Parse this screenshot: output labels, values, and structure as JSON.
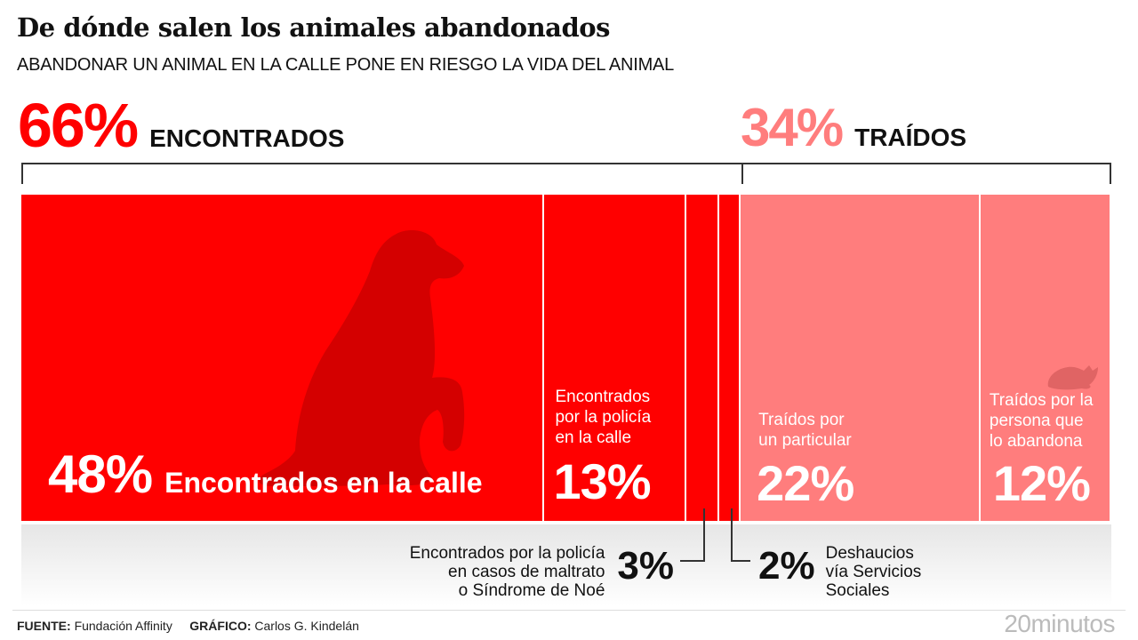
{
  "header": {
    "title": "De dónde salen los animales abandonados",
    "subtitle": "ABANDONAR UN ANIMAL EN LA CALLE PONE EN RIESGO LA VIDA DEL ANIMAL"
  },
  "colors": {
    "encontrados": "#ff0000",
    "traidos": "#ff7d7d",
    "silhouette_dark": "#d40000",
    "silhouette_light": "#e06464"
  },
  "groups": [
    {
      "pct": "66%",
      "label": "ENCONTRADOS",
      "value": 66
    },
    {
      "pct": "34%",
      "label": "TRAÍDOS",
      "value": 34
    }
  ],
  "segments": [
    {
      "pct": "48%",
      "label": "Encontrados en la calle"
    },
    {
      "pct": "13%",
      "label_lines": [
        "Encontrados",
        "por la policía",
        "en la calle"
      ]
    },
    {
      "pct": "3%",
      "label_lines": [
        "Encontrados por la policía",
        "en casos de maltrato",
        "o Síndrome de Noé"
      ]
    },
    {
      "pct": "2%",
      "label_lines": [
        "Deshaucios",
        "vía Servicios",
        "Sociales"
      ]
    },
    {
      "pct": "22%",
      "label_lines": [
        "Traídos por",
        "un particular"
      ]
    },
    {
      "pct": "12%",
      "label_lines": [
        "Traídos por la",
        "persona que",
        "lo abandona"
      ]
    }
  ],
  "footer": {
    "source_label": "FUENTE:",
    "source": "Fundación Affinity",
    "graphic_label": "GRÁFICO:",
    "graphic": "Carlos G. Kindelán",
    "brand": "20minutos"
  },
  "chart_data": {
    "type": "bar",
    "subtype": "stacked-100-horizontal",
    "title": "De dónde salen los animales abandonados",
    "subtitle": "ABANDONAR UN ANIMAL EN LA CALLE PONE EN RIESGO LA VIDA DEL ANIMAL",
    "categories": [
      "Encontrados en la calle",
      "Encontrados por la policía en la calle",
      "Encontrados por la policía en casos de maltrato o Síndrome de Noé",
      "Deshaucios vía Servicios Sociales",
      "Traídos por un particular",
      "Traídos por la persona que lo abandona"
    ],
    "values": [
      48,
      13,
      3,
      2,
      22,
      12
    ],
    "groups": [
      {
        "name": "ENCONTRADOS",
        "total": 66,
        "members": [
          0,
          1,
          2,
          3
        ]
      },
      {
        "name": "TRAÍDOS",
        "total": 34,
        "members": [
          4,
          5
        ]
      }
    ],
    "unit": "%",
    "xlabel": "",
    "ylabel": "",
    "xlim": [
      0,
      100
    ],
    "grid": false,
    "legend": "none"
  }
}
